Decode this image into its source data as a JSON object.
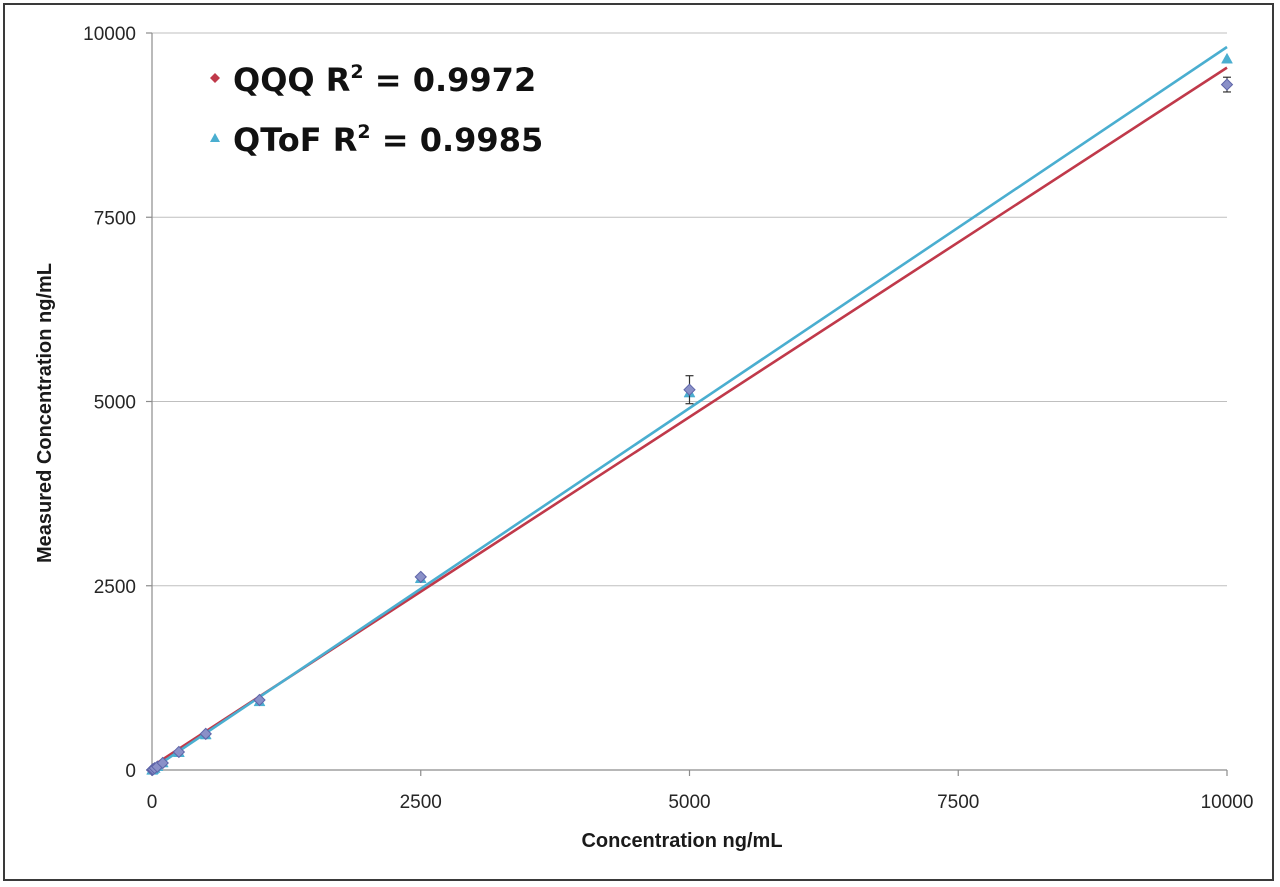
{
  "chart_data": {
    "type": "scatter",
    "title": "",
    "xlabel": "Concentration ng/mL",
    "ylabel": "Measured Concentration ng/mL",
    "xlim": [
      0,
      10000
    ],
    "ylim": [
      0,
      10000
    ],
    "x_ticks": [
      "0",
      "2500",
      "5000",
      "7500",
      "10000"
    ],
    "y_ticks": [
      "0",
      "2500",
      "5000",
      "7500",
      "10000"
    ],
    "grid": "horizontal",
    "legend_position": "top-left",
    "series": [
      {
        "name": "QQQ",
        "label_prefix": "QQQ R",
        "label_suffix": " = 0.9972",
        "superscript": "2",
        "color": "#c0394a",
        "marker": "diamond",
        "points": [
          {
            "x": 1,
            "y": 0
          },
          {
            "x": 5,
            "y": 5
          },
          {
            "x": 10,
            "y": 10
          },
          {
            "x": 25,
            "y": 25
          },
          {
            "x": 50,
            "y": 45
          },
          {
            "x": 100,
            "y": 95
          },
          {
            "x": 250,
            "y": 245
          },
          {
            "x": 500,
            "y": 490
          },
          {
            "x": 1000,
            "y": 950
          },
          {
            "x": 2500,
            "y": 2620
          },
          {
            "x": 5000,
            "y": 5160,
            "err": 190
          },
          {
            "x": 10000,
            "y": 9300,
            "err": 100
          }
        ],
        "trendline": {
          "slope": 0.948,
          "intercept": 50
        }
      },
      {
        "name": "QToF",
        "label_prefix": "QToF R",
        "label_suffix": " = 0.9985",
        "superscript": "2",
        "color": "#4aaed0",
        "marker": "triangle",
        "points": [
          {
            "x": 1,
            "y": 0
          },
          {
            "x": 5,
            "y": 5
          },
          {
            "x": 10,
            "y": 10
          },
          {
            "x": 25,
            "y": 25
          },
          {
            "x": 50,
            "y": 50
          },
          {
            "x": 100,
            "y": 100
          },
          {
            "x": 250,
            "y": 240
          },
          {
            "x": 500,
            "y": 480
          },
          {
            "x": 1000,
            "y": 930
          },
          {
            "x": 2500,
            "y": 2600
          },
          {
            "x": 5000,
            "y": 5120
          },
          {
            "x": 10000,
            "y": 9650
          }
        ],
        "trendline": {
          "slope": 0.98,
          "intercept": 10
        }
      }
    ]
  }
}
